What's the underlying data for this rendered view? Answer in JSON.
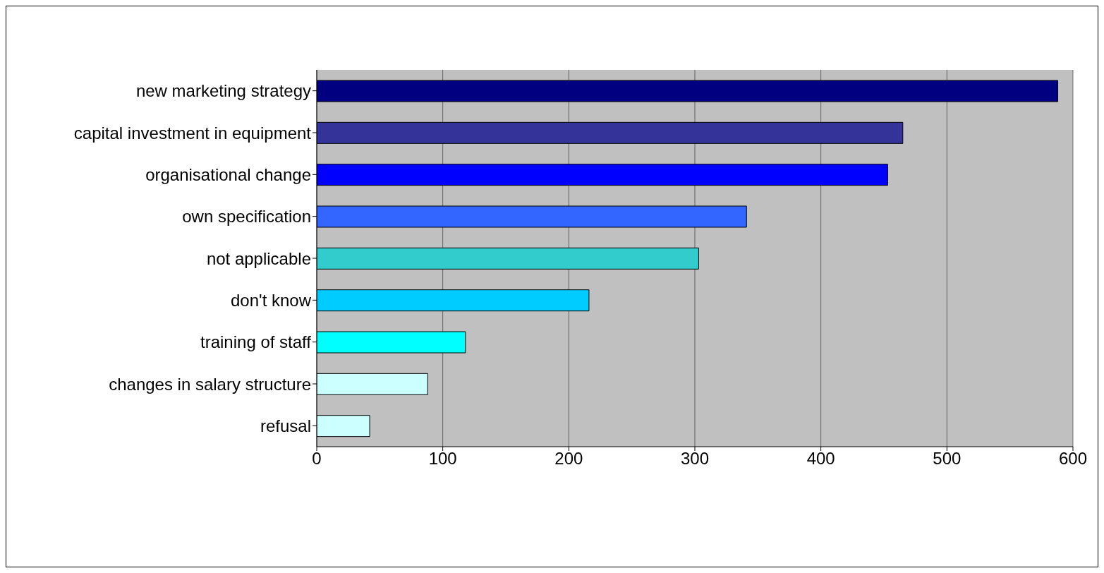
{
  "chart_data": {
    "type": "bar",
    "orientation": "horizontal",
    "categories": [
      "new marketing strategy",
      "capital investment in equipment",
      "organisational change",
      "own specification",
      "not applicable",
      "don't know",
      "training of staff",
      "changes in salary structure",
      "refusal"
    ],
    "values": [
      588,
      465,
      453,
      341,
      303,
      216,
      118,
      88,
      42
    ],
    "colors": [
      "#000080",
      "#333399",
      "#0000ff",
      "#3366ff",
      "#33cccc",
      "#00ccff",
      "#00ffff",
      "#ccffff",
      "#ccffff"
    ],
    "xlim": [
      0,
      600
    ],
    "xticks": [
      0,
      100,
      200,
      300,
      400,
      500,
      600
    ],
    "grid": "x"
  }
}
